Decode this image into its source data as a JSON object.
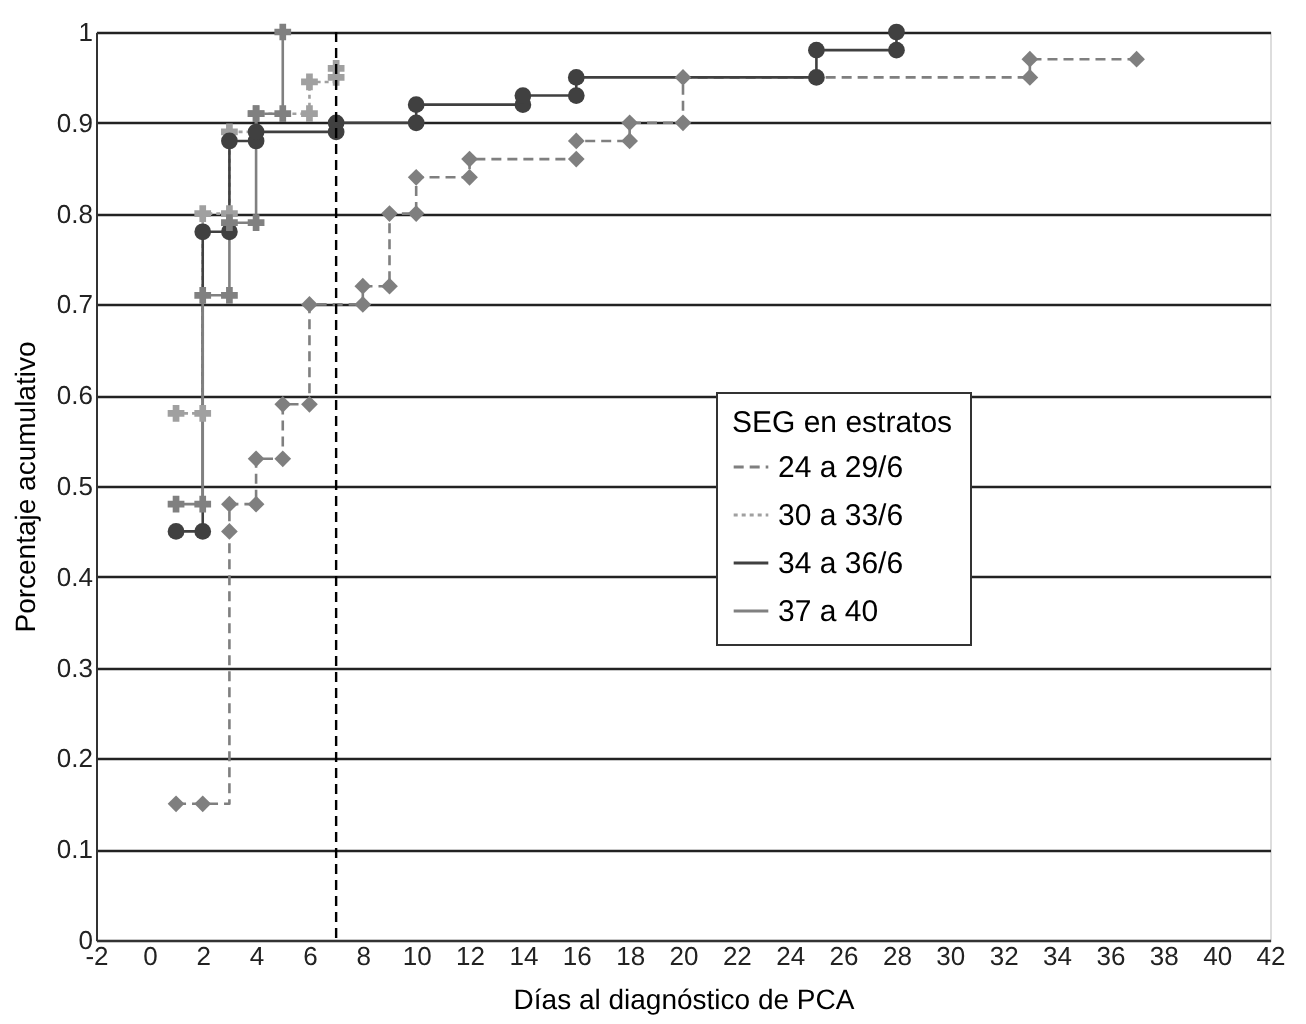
{
  "chart_data": {
    "type": "step",
    "xlabel": "Días al diagnóstico de PCA",
    "ylabel": "Porcentaje acumulativo",
    "legend_title": "SEG en estratos",
    "legend": "right",
    "xlim": [
      -2,
      42
    ],
    "xticks": [
      -2,
      0,
      2,
      4,
      6,
      8,
      10,
      12,
      14,
      16,
      18,
      20,
      22,
      24,
      26,
      28,
      30,
      32,
      34,
      36,
      38,
      40,
      42
    ],
    "ylim": [
      0,
      1
    ],
    "yticks": [
      0,
      0.1,
      0.2,
      0.3,
      0.4,
      0.5,
      0.6,
      0.7,
      0.8,
      0.9,
      1
    ],
    "grid": "y",
    "series": [
      {
        "name": "24 a 29/6",
        "color": "#7f7f7f",
        "marker": "diamond",
        "line_style": "dashed",
        "x": [
          1,
          2,
          3,
          3,
          4,
          4,
          5,
          5,
          6,
          6,
          8,
          8,
          9,
          9,
          10,
          10,
          12,
          12,
          16,
          16,
          18,
          18,
          20,
          20,
          33,
          33,
          37
        ],
        "values": [
          0.15,
          0.15,
          0.45,
          0.48,
          0.48,
          0.53,
          0.53,
          0.59,
          0.59,
          0.7,
          0.7,
          0.72,
          0.72,
          0.8,
          0.8,
          0.84,
          0.84,
          0.86,
          0.86,
          0.88,
          0.88,
          0.9,
          0.9,
          0.95,
          0.95,
          0.97,
          0.97
        ]
      },
      {
        "name": "30 a 33/6",
        "color": "#a0a0a0",
        "marker": "cross",
        "line_style": "dotted",
        "x": [
          1,
          2,
          2,
          3,
          3,
          4,
          6,
          6,
          7,
          7
        ],
        "values": [
          0.58,
          0.58,
          0.8,
          0.8,
          0.89,
          0.91,
          0.91,
          0.945,
          0.95,
          0.96
        ]
      },
      {
        "name": "34 a 36/6",
        "color": "#404040",
        "marker": "circle",
        "line_style": "solid",
        "x": [
          1,
          2,
          2,
          3,
          3,
          4,
          4,
          7,
          7,
          10,
          10,
          14,
          14,
          16,
          16,
          25,
          25,
          28,
          28
        ],
        "values": [
          0.45,
          0.45,
          0.78,
          0.78,
          0.88,
          0.88,
          0.89,
          0.89,
          0.9,
          0.9,
          0.92,
          0.92,
          0.93,
          0.93,
          0.95,
          0.95,
          0.98,
          0.98,
          1.0
        ]
      },
      {
        "name": "37 a 40",
        "color": "#808080",
        "marker": "cross",
        "line_style": "solid",
        "x": [
          1,
          2,
          2,
          3,
          3,
          4,
          4,
          5,
          5
        ],
        "values": [
          0.48,
          0.48,
          0.71,
          0.71,
          0.79,
          0.79,
          0.91,
          0.91,
          1.0
        ]
      }
    ],
    "ref_lines": [
      {
        "axis": "x",
        "value": 7,
        "color": "#000000",
        "line_style": "dashed"
      }
    ]
  }
}
